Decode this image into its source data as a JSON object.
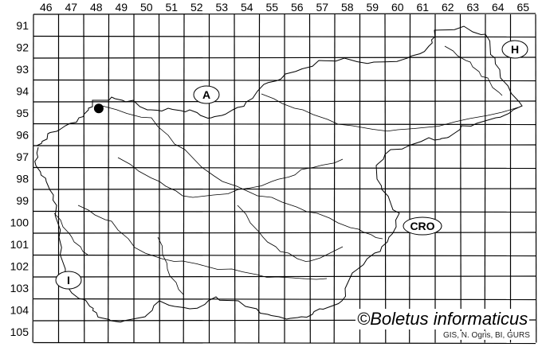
{
  "map": {
    "columns": [
      "46",
      "47",
      "48",
      "49",
      "50",
      "51",
      "52",
      "53",
      "54",
      "55",
      "56",
      "57",
      "58",
      "59",
      "60",
      "61",
      "62",
      "63",
      "64",
      "65"
    ],
    "rows": [
      "91",
      "92",
      "93",
      "94",
      "95",
      "96",
      "97",
      "98",
      "99",
      "100",
      "101",
      "102",
      "103",
      "104",
      "105"
    ],
    "country_labels": [
      {
        "id": "austria",
        "text": "A"
      },
      {
        "id": "hungary",
        "text": "H"
      },
      {
        "id": "croatia",
        "text": "CRO"
      },
      {
        "id": "italy",
        "text": "I"
      }
    ],
    "marker": {
      "column": "48",
      "row": "95",
      "color": "#000000"
    },
    "copyright": "©Boletus informaticus",
    "source": "GIS, N. Ogris, BI, GURS"
  }
}
